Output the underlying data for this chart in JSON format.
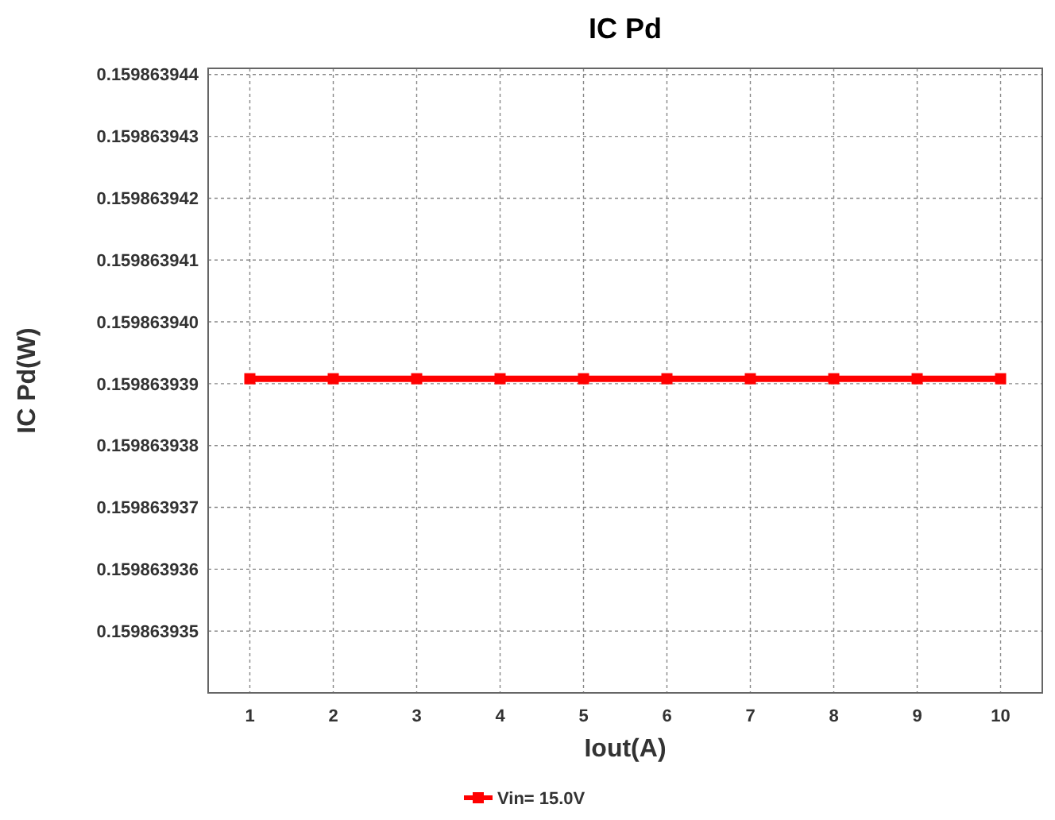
{
  "chart_data": {
    "type": "line",
    "title": "IC Pd",
    "xlabel": "Iout(A)",
    "ylabel": "IC Pd(W)",
    "x": [
      1,
      2,
      3,
      4,
      5,
      6,
      7,
      8,
      9,
      10
    ],
    "series": [
      {
        "name": "Vin= 15.0V",
        "color": "#ff0000",
        "values": [
          0.15986393908,
          0.15986393908,
          0.15986393908,
          0.15986393908,
          0.15986393908,
          0.15986393908,
          0.15986393908,
          0.15986393908,
          0.15986393908,
          0.15986393908
        ]
      }
    ],
    "xlim": [
      0.5,
      10.5
    ],
    "xticks": [
      1,
      2,
      3,
      4,
      5,
      6,
      7,
      8,
      9,
      10
    ],
    "ylim": [
      0.159863934,
      0.1598639441
    ],
    "yticks": [
      {
        "value": 0.159863935,
        "label": "0.159863935"
      },
      {
        "value": 0.159863936,
        "label": "0.159863936"
      },
      {
        "value": 0.159863937,
        "label": "0.159863937"
      },
      {
        "value": 0.159863938,
        "label": "0.159863938"
      },
      {
        "value": 0.159863939,
        "label": "0.159863939"
      },
      {
        "value": 0.15986394,
        "label": "0.159863940"
      },
      {
        "value": 0.159863941,
        "label": "0.159863941"
      },
      {
        "value": 0.159863942,
        "label": "0.159863942"
      },
      {
        "value": 0.159863943,
        "label": "0.159863943"
      },
      {
        "value": 0.159863944,
        "label": "0.159863944"
      }
    ],
    "grid": true,
    "legend": "bottom",
    "marker": "square",
    "line_style": "solid"
  }
}
